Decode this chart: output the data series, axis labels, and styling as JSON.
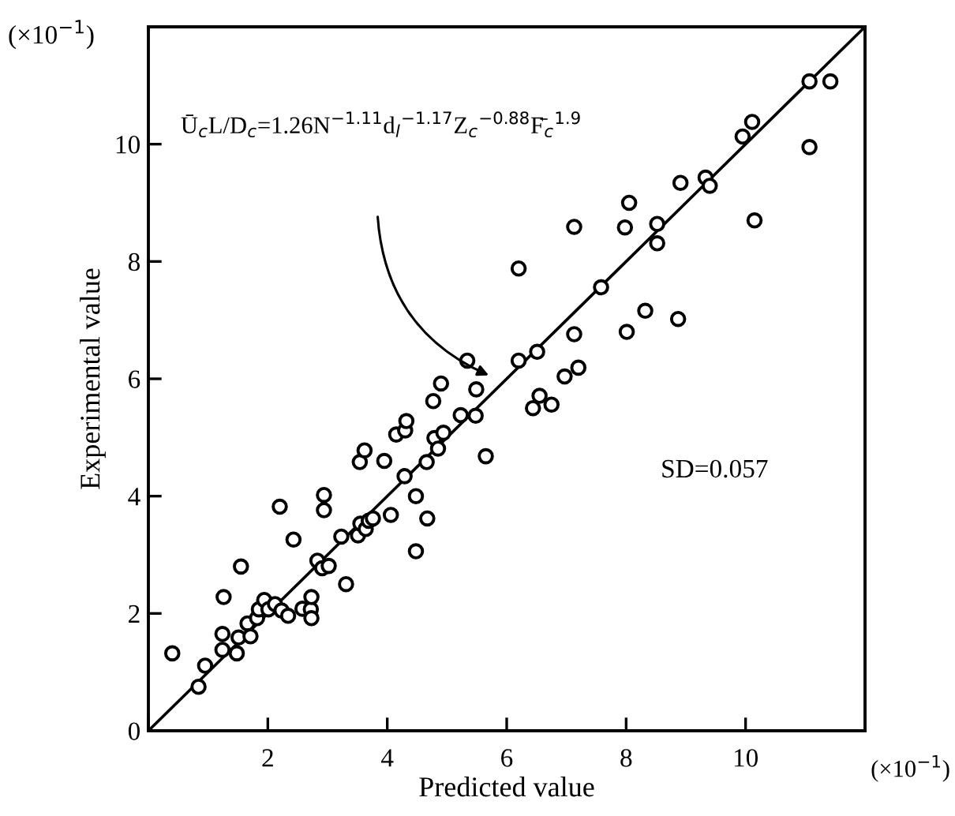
{
  "chart_data": {
    "type": "scatter",
    "xlabel": "Predicted value",
    "ylabel": "Experimental value",
    "xlim": [
      0,
      12
    ],
    "ylim": [
      0,
      12
    ],
    "xticks": [
      {
        "value": 0,
        "label": null
      },
      2,
      4,
      6,
      8,
      10
    ],
    "yticks": [
      0,
      2,
      4,
      6,
      8,
      10
    ],
    "grid": false,
    "marker": "circle",
    "annotations": [
      "Ū$_{c}$L/D$_{c}$=1.26N$^{−1.11}$d$_{l}$$^{−1.17}$Z$_{c}$$^{−0.88}$F̄$_{c}$$^{1.9}$",
      "SD=0.057",
      "(×10$^{−1}$)",
      "(×10$^{−1}$)"
    ],
    "series": [
      {
        "type": "line",
        "color": "#000000",
        "line_style": "solid",
        "marker": "none",
        "x": [
          0,
          12
        ],
        "values": [
          0,
          12
        ]
      },
      {
        "color": "#000000",
        "x": [
          0.4,
          0.84,
          0.95,
          1.24,
          1.24,
          1.26,
          1.48,
          1.51,
          1.55,
          1.66,
          1.71,
          1.82,
          1.85,
          1.94,
          2.01,
          2.12,
          2.2,
          2.23,
          2.34,
          2.43,
          2.58,
          2.72,
          2.73,
          2.73,
          2.83,
          2.91,
          2.94,
          2.94,
          3.02,
          3.23,
          3.31,
          3.51,
          3.54,
          3.55,
          3.62,
          3.64,
          3.69,
          3.76,
          3.95,
          4.06,
          4.15,
          4.29,
          4.3,
          4.32,
          4.48,
          4.48,
          4.66,
          4.67,
          4.79,
          4.85,
          4.94,
          5.23,
          5.48,
          5.65,
          4.77,
          4.9,
          5.49,
          5.34,
          6.2,
          6.2,
          6.51,
          6.44,
          6.55,
          6.75,
          6.97,
          7.2,
          7.13,
          7.13,
          7.58,
          7.98,
          8.05,
          8.01,
          8.32,
          8.52,
          8.52,
          8.87,
          8.91,
          9.33,
          9.4,
          10.15,
          11.07,
          11.42,
          11.07,
          9.95,
          10.11
        ],
        "values": [
          1.32,
          0.75,
          1.11,
          1.38,
          1.65,
          2.28,
          1.32,
          1.59,
          2.8,
          1.83,
          1.61,
          1.92,
          2.07,
          2.23,
          2.07,
          2.16,
          3.82,
          2.05,
          1.96,
          3.26,
          2.08,
          2.07,
          2.28,
          1.92,
          2.9,
          2.77,
          3.76,
          4.02,
          2.81,
          3.31,
          2.5,
          3.33,
          4.58,
          3.53,
          4.78,
          3.44,
          3.58,
          3.62,
          4.6,
          3.68,
          5.05,
          4.34,
          5.12,
          5.28,
          4.0,
          3.06,
          4.58,
          3.62,
          4.99,
          4.81,
          5.08,
          5.38,
          5.37,
          4.68,
          5.62,
          5.92,
          5.82,
          6.31,
          7.88,
          6.31,
          6.46,
          5.5,
          5.71,
          5.56,
          6.04,
          6.19,
          6.76,
          8.59,
          7.56,
          8.58,
          9.0,
          6.8,
          7.16,
          8.64,
          8.31,
          7.02,
          9.34,
          9.43,
          9.29,
          8.7,
          11.07,
          11.07,
          9.95,
          10.13,
          10.38
        ]
      }
    ]
  }
}
